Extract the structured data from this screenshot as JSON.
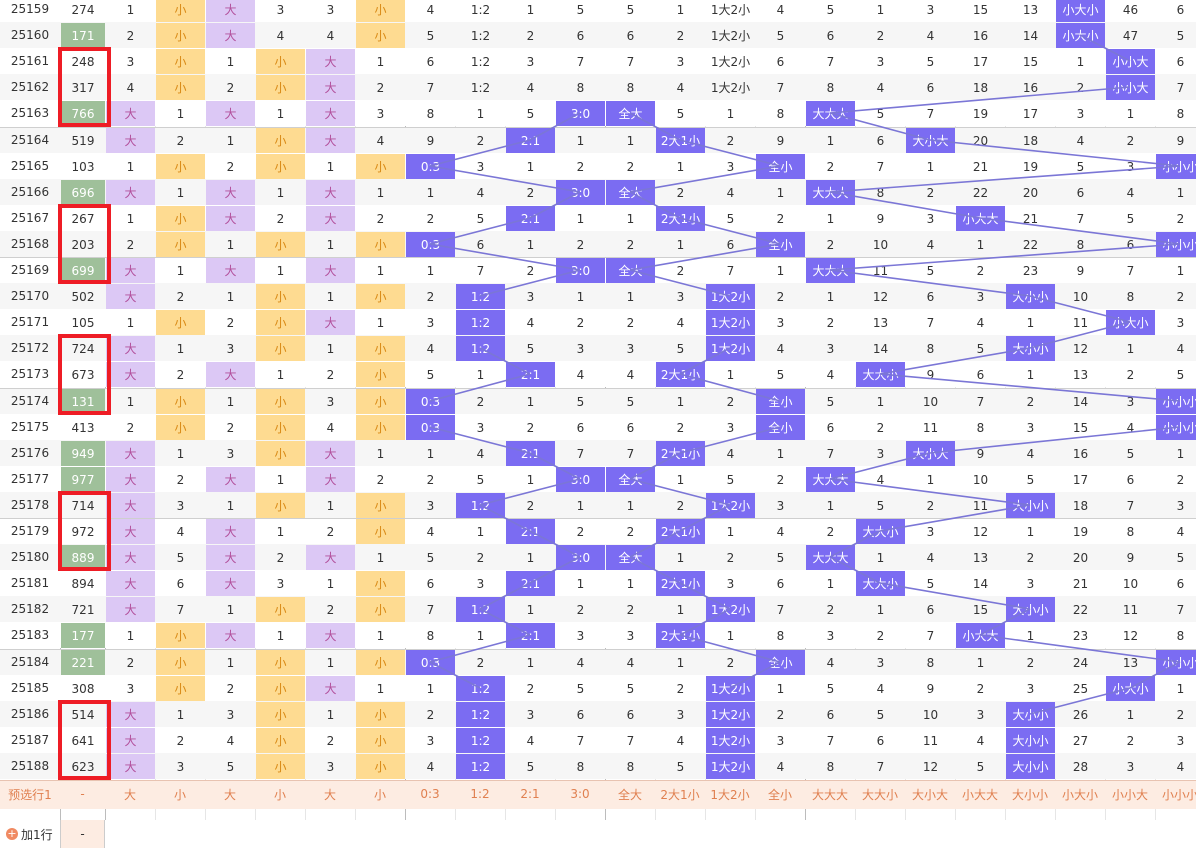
{
  "period_rows": [
    {
      "period": "25159",
      "num": "274",
      "green": false,
      "cells": [
        "1",
        "小",
        "大",
        "3",
        "3",
        "小",
        "4",
        "1:2",
        "1",
        "5",
        "5",
        "1",
        "1大2小",
        "4",
        "5",
        "1",
        "3",
        "15",
        "13",
        "小大小",
        "46",
        "6"
      ],
      "hl": [
        19
      ]
    },
    {
      "period": "25160",
      "num": "171",
      "green": true,
      "cells": [
        "2",
        "小",
        "大",
        "4",
        "4",
        "小",
        "5",
        "1:2",
        "2",
        "6",
        "6",
        "2",
        "1大2小",
        "5",
        "6",
        "2",
        "4",
        "16",
        "14",
        "小大小",
        "47",
        "5"
      ],
      "hl": [
        19
      ]
    },
    {
      "period": "25161",
      "num": "248",
      "green": false,
      "cells": [
        "3",
        "小",
        "1",
        "小",
        "大",
        "1",
        "6",
        "1:2",
        "3",
        "7",
        "7",
        "3",
        "1大2小",
        "6",
        "7",
        "3",
        "5",
        "17",
        "15",
        "1",
        "小小大",
        "6"
      ],
      "hl": [
        20
      ]
    },
    {
      "period": "25162",
      "num": "317",
      "green": false,
      "cells": [
        "4",
        "小",
        "2",
        "小",
        "大",
        "2",
        "7",
        "1:2",
        "4",
        "8",
        "8",
        "4",
        "1大2小",
        "7",
        "8",
        "4",
        "6",
        "18",
        "16",
        "2",
        "小小大",
        "7"
      ],
      "hl": [
        20
      ]
    },
    {
      "period": "25163",
      "num": "766",
      "green": true,
      "cells": [
        "大",
        "1",
        "大",
        "1",
        "大",
        "3",
        "8",
        "1",
        "5",
        "3:0",
        "全大",
        "5",
        "1",
        "8",
        "大大大",
        "5",
        "7",
        "19",
        "17",
        "3",
        "1",
        "8"
      ],
      "hl": [
        9,
        10,
        14
      ]
    },
    {
      "period": "25164",
      "num": "519",
      "green": false,
      "cells": [
        "大",
        "2",
        "1",
        "小",
        "大",
        "4",
        "9",
        "2",
        "2:1",
        "1",
        "1",
        "2大1小",
        "2",
        "9",
        "1",
        "6",
        "大小大",
        "20",
        "18",
        "4",
        "2",
        "9"
      ],
      "hl": [
        8,
        11,
        16
      ]
    },
    {
      "period": "25165",
      "num": "103",
      "green": false,
      "cells": [
        "1",
        "小",
        "2",
        "小",
        "1",
        "小",
        "0:3",
        "3",
        "1",
        "2",
        "2",
        "1",
        "3",
        "全小",
        "2",
        "7",
        "1",
        "21",
        "19",
        "5",
        "3",
        "小小小"
      ],
      "hl": [
        6,
        13,
        21
      ]
    },
    {
      "period": "25166",
      "num": "696",
      "green": true,
      "cells": [
        "大",
        "1",
        "大",
        "1",
        "大",
        "1",
        "1",
        "4",
        "2",
        "3:0",
        "全大",
        "2",
        "4",
        "1",
        "大大大",
        "8",
        "2",
        "22",
        "20",
        "6",
        "4",
        "1"
      ],
      "hl": [
        9,
        10,
        14
      ]
    },
    {
      "period": "25167",
      "num": "267",
      "green": false,
      "cells": [
        "1",
        "小",
        "大",
        "2",
        "大",
        "2",
        "2",
        "5",
        "2:1",
        "1",
        "1",
        "2大1小",
        "5",
        "2",
        "1",
        "9",
        "3",
        "小大大",
        "21",
        "7",
        "5",
        "2"
      ],
      "hl": [
        8,
        11,
        17
      ]
    },
    {
      "period": "25168",
      "num": "203",
      "green": false,
      "cells": [
        "2",
        "小",
        "1",
        "小",
        "1",
        "小",
        "0:3",
        "6",
        "1",
        "2",
        "2",
        "1",
        "6",
        "全小",
        "2",
        "10",
        "4",
        "1",
        "22",
        "8",
        "6",
        "小小小"
      ],
      "hl": [
        6,
        13,
        21
      ]
    },
    {
      "period": "25169",
      "num": "699",
      "green": true,
      "cells": [
        "大",
        "1",
        "大",
        "1",
        "大",
        "1",
        "1",
        "7",
        "2",
        "3:0",
        "全大",
        "2",
        "7",
        "1",
        "大大大",
        "11",
        "5",
        "2",
        "23",
        "9",
        "7",
        "1"
      ],
      "hl": [
        9,
        10,
        14
      ]
    },
    {
      "period": "25170",
      "num": "502",
      "green": false,
      "cells": [
        "大",
        "2",
        "1",
        "小",
        "1",
        "小",
        "2",
        "1:2",
        "3",
        "1",
        "1",
        "3",
        "1大2小",
        "2",
        "1",
        "12",
        "6",
        "3",
        "大小小",
        "10",
        "8",
        "2"
      ],
      "hl": [
        7,
        12,
        18
      ]
    },
    {
      "period": "25171",
      "num": "105",
      "green": false,
      "cells": [
        "1",
        "小",
        "2",
        "小",
        "大",
        "1",
        "3",
        "1:2",
        "4",
        "2",
        "2",
        "4",
        "1大2小",
        "3",
        "2",
        "13",
        "7",
        "4",
        "1",
        "11",
        "小大小",
        "3"
      ],
      "hl": [
        7,
        12,
        20
      ]
    },
    {
      "period": "25172",
      "num": "724",
      "green": false,
      "cells": [
        "大",
        "1",
        "3",
        "小",
        "1",
        "小",
        "4",
        "1:2",
        "5",
        "3",
        "3",
        "5",
        "1大2小",
        "4",
        "3",
        "14",
        "8",
        "5",
        "大小小",
        "12",
        "1",
        "4"
      ],
      "hl": [
        7,
        12,
        18
      ]
    },
    {
      "period": "25173",
      "num": "673",
      "green": false,
      "cells": [
        "大",
        "2",
        "大",
        "1",
        "2",
        "小",
        "5",
        "1",
        "2:1",
        "4",
        "4",
        "2大1小",
        "1",
        "5",
        "4",
        "大大小",
        "9",
        "6",
        "1",
        "13",
        "2",
        "5"
      ],
      "hl": [
        8,
        11,
        15
      ]
    },
    {
      "period": "25174",
      "num": "131",
      "green": true,
      "cells": [
        "1",
        "小",
        "1",
        "小",
        "3",
        "小",
        "0:3",
        "2",
        "1",
        "5",
        "5",
        "1",
        "2",
        "全小",
        "5",
        "1",
        "10",
        "7",
        "2",
        "14",
        "3",
        "小小小"
      ],
      "hl": [
        6,
        13,
        21
      ]
    },
    {
      "period": "25175",
      "num": "413",
      "green": false,
      "cells": [
        "2",
        "小",
        "2",
        "小",
        "4",
        "小",
        "0:3",
        "3",
        "2",
        "6",
        "6",
        "2",
        "3",
        "全小",
        "6",
        "2",
        "11",
        "8",
        "3",
        "15",
        "4",
        "小小小"
      ],
      "hl": [
        6,
        13,
        21
      ]
    },
    {
      "period": "25176",
      "num": "949",
      "green": true,
      "cells": [
        "大",
        "1",
        "3",
        "小",
        "大",
        "1",
        "1",
        "4",
        "2:1",
        "7",
        "7",
        "2大1小",
        "4",
        "1",
        "7",
        "3",
        "大小大",
        "9",
        "4",
        "16",
        "5",
        "1"
      ],
      "hl": [
        8,
        11,
        16
      ]
    },
    {
      "period": "25177",
      "num": "977",
      "green": true,
      "cells": [
        "大",
        "2",
        "大",
        "1",
        "大",
        "2",
        "2",
        "5",
        "1",
        "3:0",
        "全大",
        "1",
        "5",
        "2",
        "大大大",
        "4",
        "1",
        "10",
        "5",
        "17",
        "6",
        "2"
      ],
      "hl": [
        9,
        10,
        14
      ]
    },
    {
      "period": "25178",
      "num": "714",
      "green": false,
      "cells": [
        "大",
        "3",
        "1",
        "小",
        "1",
        "小",
        "3",
        "1:2",
        "2",
        "1",
        "1",
        "2",
        "1大2小",
        "3",
        "1",
        "5",
        "2",
        "11",
        "大小小",
        "18",
        "7",
        "3"
      ],
      "hl": [
        7,
        12,
        18
      ]
    },
    {
      "period": "25179",
      "num": "972",
      "green": false,
      "cells": [
        "大",
        "4",
        "大",
        "1",
        "2",
        "小",
        "4",
        "1",
        "2:1",
        "2",
        "2",
        "2大1小",
        "1",
        "4",
        "2",
        "大大小",
        "3",
        "12",
        "1",
        "19",
        "8",
        "4"
      ],
      "hl": [
        8,
        11,
        15
      ]
    },
    {
      "period": "25180",
      "num": "889",
      "green": true,
      "cells": [
        "大",
        "5",
        "大",
        "2",
        "大",
        "1",
        "5",
        "2",
        "1",
        "3:0",
        "全大",
        "1",
        "2",
        "5",
        "大大大",
        "1",
        "4",
        "13",
        "2",
        "20",
        "9",
        "5"
      ],
      "hl": [
        9,
        10,
        14
      ]
    },
    {
      "period": "25181",
      "num": "894",
      "green": false,
      "cells": [
        "大",
        "6",
        "大",
        "3",
        "1",
        "小",
        "6",
        "3",
        "2:1",
        "1",
        "1",
        "2大1小",
        "3",
        "6",
        "1",
        "大大小",
        "5",
        "14",
        "3",
        "21",
        "10",
        "6"
      ],
      "hl": [
        8,
        11,
        15
      ]
    },
    {
      "period": "25182",
      "num": "721",
      "green": false,
      "cells": [
        "大",
        "7",
        "1",
        "小",
        "2",
        "小",
        "7",
        "1:2",
        "1",
        "2",
        "2",
        "1",
        "1大2小",
        "7",
        "2",
        "1",
        "6",
        "15",
        "大小小",
        "22",
        "11",
        "7"
      ],
      "hl": [
        7,
        12,
        18
      ]
    },
    {
      "period": "25183",
      "num": "177",
      "green": true,
      "cells": [
        "1",
        "小",
        "大",
        "1",
        "大",
        "1",
        "8",
        "1",
        "2:1",
        "3",
        "3",
        "2大1小",
        "1",
        "8",
        "3",
        "2",
        "7",
        "小大大",
        "1",
        "23",
        "12",
        "8"
      ],
      "hl": [
        8,
        11,
        17
      ]
    },
    {
      "period": "25184",
      "num": "221",
      "green": true,
      "cells": [
        "2",
        "小",
        "1",
        "小",
        "1",
        "小",
        "0:3",
        "2",
        "1",
        "4",
        "4",
        "1",
        "2",
        "全小",
        "4",
        "3",
        "8",
        "1",
        "2",
        "24",
        "13",
        "小小小"
      ],
      "hl": [
        6,
        13,
        21
      ]
    },
    {
      "period": "25185",
      "num": "308",
      "green": false,
      "cells": [
        "3",
        "小",
        "2",
        "小",
        "大",
        "1",
        "1",
        "1:2",
        "2",
        "5",
        "5",
        "2",
        "1大2小",
        "1",
        "5",
        "4",
        "9",
        "2",
        "3",
        "25",
        "小大小",
        "1"
      ],
      "hl": [
        7,
        12,
        20
      ]
    },
    {
      "period": "25186",
      "num": "514",
      "green": false,
      "cells": [
        "大",
        "1",
        "3",
        "小",
        "1",
        "小",
        "2",
        "1:2",
        "3",
        "6",
        "6",
        "3",
        "1大2小",
        "2",
        "6",
        "5",
        "10",
        "3",
        "大小小",
        "26",
        "1",
        "2"
      ],
      "hl": [
        7,
        12,
        18
      ]
    },
    {
      "period": "25187",
      "num": "641",
      "green": false,
      "cells": [
        "大",
        "2",
        "4",
        "小",
        "2",
        "小",
        "3",
        "1:2",
        "4",
        "7",
        "7",
        "4",
        "1大2小",
        "3",
        "7",
        "6",
        "11",
        "4",
        "大小小",
        "27",
        "2",
        "3"
      ],
      "hl": [
        7,
        12,
        18
      ]
    },
    {
      "period": "25188",
      "num": "623",
      "green": false,
      "cells": [
        "大",
        "3",
        "5",
        "小",
        "3",
        "小",
        "4",
        "1:2",
        "5",
        "8",
        "8",
        "5",
        "1大2小",
        "4",
        "8",
        "7",
        "12",
        "5",
        "大小小",
        "28",
        "3",
        "4"
      ],
      "hl": [
        7,
        12,
        18
      ]
    }
  ],
  "footer": {
    "label": "预选行1",
    "dash": "-",
    "cells": [
      "大",
      "小",
      "大",
      "小",
      "大",
      "小",
      "0:3",
      "1:2",
      "2:1",
      "3:0",
      "全大",
      "2大1小",
      "1大2小",
      "全小",
      "大大大",
      "大大小",
      "大小大",
      "小大大",
      "大小小",
      "小大小",
      "小小大",
      "小小小"
    ]
  },
  "add_row": {
    "label": "加1行",
    "dash": "-"
  },
  "colors": {
    "purple": "#7b6cf2",
    "lavender": "#dcc8f5",
    "yellow": "#fedb91",
    "green": "#9fc09a",
    "line": "#7b76d6",
    "red_box": "#ee1c25",
    "footer_bg": "#fdece2",
    "footer_text": "#e08050"
  }
}
